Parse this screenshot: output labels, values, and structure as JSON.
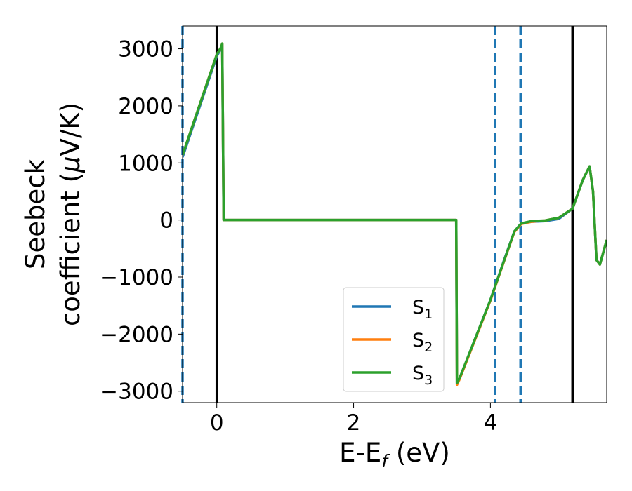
{
  "chart_data": {
    "type": "line",
    "xlabel": {
      "main": "E-E",
      "sub": "f",
      "unit": " (eV)"
    },
    "ylabel": {
      "line1": "Seebeck",
      "line2": "coefficient  (",
      "mu": "μ",
      "line2_end": "V/K)"
    },
    "xlim": [
      -0.5,
      5.7
    ],
    "ylim": [
      -3200,
      3400
    ],
    "xticks": [
      0,
      2,
      4
    ],
    "xtick_labels": [
      "0",
      "2",
      "4"
    ],
    "yticks": [
      -3000,
      -2000,
      -1000,
      0,
      1000,
      2000,
      3000
    ],
    "ytick_labels": [
      "−3000",
      "−2000",
      "−1000",
      "0",
      "1000",
      "2000",
      "3000"
    ],
    "grid": false,
    "legend_position": "lower-right",
    "vlines_solid": [
      0,
      5.2
    ],
    "vlines_dashed": [
      -0.5,
      4.07,
      4.44
    ],
    "series": [
      {
        "name": "S",
        "sub": "1",
        "color": "#1f77b4",
        "x": [
          -0.5,
          0.0,
          0.06,
          0.08,
          0.1,
          3.5,
          3.51,
          3.55,
          4.0,
          4.2,
          4.35,
          4.45,
          4.6,
          4.8,
          5.0,
          5.2,
          5.35,
          5.45,
          5.5,
          5.55,
          5.6,
          5.7
        ],
        "y": [
          1100,
          2870,
          3000,
          3080,
          0,
          0,
          -2880,
          -2780,
          -1400,
          -700,
          -200,
          -60,
          -30,
          -20,
          20,
          200,
          700,
          940,
          500,
          -700,
          -780,
          -350
        ]
      },
      {
        "name": "S",
        "sub": "2",
        "color": "#ff7f0e",
        "x": [
          -0.5,
          0.0,
          0.06,
          0.08,
          0.1,
          3.5,
          3.51,
          3.55,
          4.0,
          4.2,
          4.35,
          4.45,
          4.6,
          4.8,
          5.0,
          5.2,
          5.35,
          5.45,
          5.5,
          5.55,
          5.6,
          5.7
        ],
        "y": [
          1140,
          2900,
          3020,
          3090,
          0,
          0,
          -2890,
          -2790,
          -1410,
          -720,
          -210,
          -70,
          -30,
          -10,
          40,
          200,
          700,
          940,
          500,
          -700,
          -780,
          -350
        ]
      },
      {
        "name": "S",
        "sub": "3",
        "color": "#2ca02c",
        "x": [
          -0.5,
          0.0,
          0.06,
          0.08,
          0.1,
          3.5,
          3.51,
          3.55,
          4.0,
          4.2,
          4.35,
          4.45,
          4.6,
          4.8,
          5.0,
          5.2,
          5.35,
          5.45,
          5.5,
          5.55,
          5.6,
          5.7
        ],
        "y": [
          1140,
          2900,
          3020,
          3090,
          0,
          0,
          -2860,
          -2770,
          -1400,
          -710,
          -200,
          -60,
          -20,
          -10,
          40,
          200,
          700,
          940,
          500,
          -700,
          -780,
          -350
        ]
      }
    ]
  }
}
